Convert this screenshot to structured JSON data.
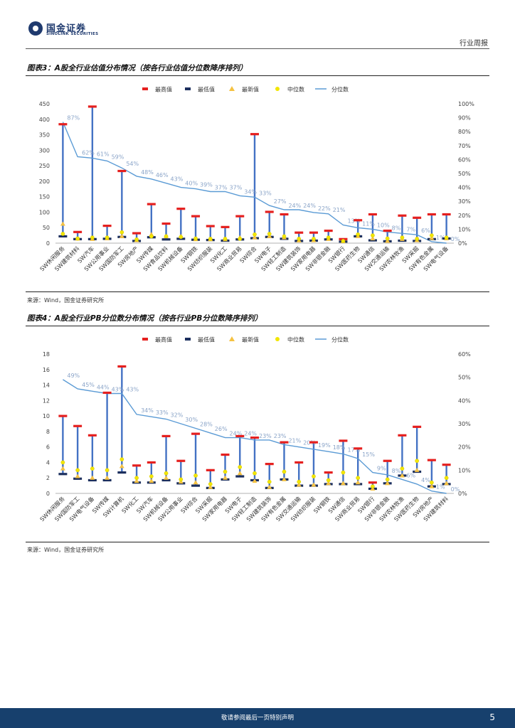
{
  "header": {
    "logo_cn": "国金证券",
    "logo_en": "SINOLINK SECURITIES",
    "report_type": "行业周报"
  },
  "figures": [
    {
      "title": "图表3：A股全行业估值分布情况（按各行业估值分位数降序排列）",
      "source": "来源：Wind，国金证券研究所"
    },
    {
      "title": "图表4：A股全行业PB分位数分布情况（按各行业PB分位数降序排列）",
      "source": "来源：Wind，国金证券研究所"
    }
  ],
  "footer": {
    "disclaimer": "敬请参阅最后一页特别声明",
    "page": "5"
  },
  "chart_data": [
    {
      "type": "line",
      "legend": [
        "最高值",
        "最低值",
        "最新值",
        "中位数",
        "分位数"
      ],
      "legend_position": "top",
      "colors": {
        "max": "#e5201f",
        "min": "#1c2f5e",
        "latest": "#f5c242",
        "median": "#f2e600",
        "pct": "#5b9bd5",
        "bar": "#4472c4"
      },
      "categories": [
        "SW休闲服务",
        "SW建筑材料",
        "SW汽车",
        "SW公用事业",
        "SW国防军工",
        "SW房地产",
        "SW传媒",
        "SW食品饮料",
        "SW机械设备",
        "SW钢铁",
        "SW纺织服装",
        "SW化工",
        "SW商业贸易",
        "SW综合",
        "SW电子",
        "SW轻工制造",
        "SW建筑装饰",
        "SW家用电器",
        "SW非银金融",
        "SW银行",
        "SW医药生物",
        "SW通信",
        "SW交通运输",
        "SW农林牧渔",
        "SW采掘",
        "SW有色金属",
        "SW电气设备"
      ],
      "series": [
        {
          "name": "最高值",
          "values": [
            384,
            36,
            441,
            56,
            233,
            32,
            126,
            63,
            111,
            87,
            55,
            52,
            87,
            352,
            101,
            93,
            34,
            34,
            40,
            13,
            74,
            93,
            40,
            89,
            82,
            93,
            93
          ]
        },
        {
          "name": "最低值",
          "values": [
            22,
            13,
            13,
            14,
            20,
            7,
            19,
            12,
            14,
            11,
            10,
            8,
            12,
            16,
            20,
            14,
            7,
            8,
            12,
            5,
            22,
            9,
            6,
            8,
            7,
            13,
            15
          ]
        },
        {
          "name": "最新值",
          "values": [
            62,
            14,
            13,
            15,
            22,
            9,
            28,
            22,
            22,
            12,
            12,
            12,
            18,
            18,
            22,
            18,
            8,
            9,
            13,
            6,
            22,
            15,
            7,
            13,
            9,
            16,
            15
          ]
        },
        {
          "name": "中位数",
          "values": [
            30,
            15,
            18,
            18,
            35,
            12,
            22,
            22,
            20,
            15,
            14,
            14,
            14,
            28,
            30,
            22,
            14,
            14,
            18,
            7,
            28,
            25,
            15,
            18,
            14,
            25,
            18
          ]
        },
        {
          "name": "分位数",
          "values": [
            87,
            62,
            61,
            59,
            54,
            48,
            46,
            43,
            40,
            39,
            37,
            37,
            34,
            33,
            27,
            24,
            24,
            22,
            21,
            13,
            11,
            10,
            8,
            7,
            6,
            1,
            0
          ],
          "labels": [
            "87%",
            "62%",
            "61%",
            "59%",
            "54%",
            "48%",
            "46%",
            "43%",
            "40%",
            "39%",
            "37%",
            "37%",
            "34%",
            "33%",
            "27%",
            "24%",
            "24%",
            "22%",
            "21%",
            "13%",
            "11%",
            "10%",
            "8%",
            "7%",
            "6%",
            "1%",
            "0%"
          ]
        }
      ],
      "y_left": {
        "min": 0,
        "max": 450,
        "ticks": [
          0,
          50,
          100,
          150,
          200,
          250,
          300,
          350,
          400,
          450
        ]
      },
      "y_right": {
        "min": 0,
        "max": 100,
        "ticks": [
          "0%",
          "10%",
          "20%",
          "30%",
          "40%",
          "50%",
          "60%",
          "70%",
          "80%",
          "90%",
          "100%"
        ]
      }
    },
    {
      "type": "line",
      "legend": [
        "最高值",
        "最低值",
        "最新值",
        "中位数",
        "分位数"
      ],
      "legend_position": "top",
      "colors": {
        "max": "#e5201f",
        "min": "#1c2f5e",
        "latest": "#f5c242",
        "median": "#f2e600",
        "pct": "#5b9bd5",
        "bar": "#4472c4"
      },
      "categories": [
        "SW休闲服务",
        "SW国防军工",
        "SW电气设备",
        "SW传媒",
        "SW计算机",
        "SW化工",
        "SW汽车",
        "SW机械设备",
        "SW公用事业",
        "SW综合",
        "SW采掘",
        "SW家用电器",
        "SW电子",
        "SW轻工制造",
        "SW建筑装饰",
        "SW有色金属",
        "SW交通运输",
        "SW纺织服装",
        "SW钢铁",
        "SW通信",
        "SW商业贸易",
        "SW银行",
        "SW非银金融",
        "SW农林牧渔",
        "SW医药生物",
        "SW房地产",
        "SW建筑材料"
      ],
      "series": [
        {
          "name": "最高值",
          "values": [
            10.0,
            8.7,
            7.5,
            13.0,
            16.4,
            3.6,
            4.0,
            7.4,
            4.2,
            7.7,
            3.0,
            5.0,
            7.4,
            7.2,
            3.8,
            6.6,
            4.0,
            6.6,
            2.7,
            6.8,
            5.8,
            1.4,
            4.2,
            7.5,
            8.6,
            4.3,
            3.7
          ]
        },
        {
          "name": "最低值",
          "values": [
            2.5,
            1.9,
            1.7,
            1.7,
            2.7,
            1.4,
            1.4,
            1.7,
            1.3,
            1.0,
            0.7,
            1.8,
            2.2,
            1.7,
            0.7,
            1.8,
            1.0,
            1.0,
            1.2,
            1.2,
            1.2,
            0.6,
            1.3,
            2.3,
            2.8,
            0.9,
            1.2
          ]
        },
        {
          "name": "最新值",
          "values": [
            3.2,
            2.2,
            2.0,
            2.0,
            3.5,
            1.6,
            1.6,
            2.0,
            1.5,
            1.4,
            0.8,
            2.0,
            2.6,
            1.6,
            0.8,
            1.8,
            1.1,
            1.1,
            1.3,
            1.3,
            1.4,
            0.6,
            1.3,
            2.3,
            3.0,
            0.9,
            1.3
          ]
        },
        {
          "name": "中位数",
          "values": [
            4.0,
            3.0,
            3.2,
            3.0,
            4.4,
            2.0,
            2.2,
            2.6,
            1.8,
            2.3,
            1.2,
            2.8,
            3.4,
            2.6,
            1.5,
            2.8,
            1.5,
            2.2,
            1.7,
            2.7,
            2.0,
            0.9,
            1.8,
            3.2,
            4.2,
            1.4,
            2.0
          ]
        },
        {
          "name": "分位数",
          "values": [
            49,
            45,
            44,
            43,
            43,
            34,
            33,
            32,
            30,
            28,
            26,
            24,
            24,
            23,
            23,
            21,
            20,
            19,
            18,
            17,
            15,
            9,
            8,
            6,
            4,
            1,
            0
          ],
          "labels": [
            "49%",
            "45%",
            "44%",
            "43%",
            "43%",
            "34%",
            "33%",
            "32%",
            "30%",
            "28%",
            "26%",
            "24%",
            "24%",
            "23%",
            "23%",
            "21%",
            "20%",
            "19%",
            "18%",
            "17%",
            "15%",
            "9%",
            "8%",
            "6%",
            "4%",
            "1%",
            "0%"
          ]
        }
      ],
      "y_left": {
        "min": 0,
        "max": 18,
        "ticks": [
          0,
          2,
          4,
          6,
          8,
          10,
          12,
          14,
          16,
          18
        ]
      },
      "y_right": {
        "min": 0,
        "max": 60,
        "ticks": [
          "0%",
          "10%",
          "20%",
          "30%",
          "40%",
          "50%",
          "60%"
        ]
      }
    }
  ]
}
